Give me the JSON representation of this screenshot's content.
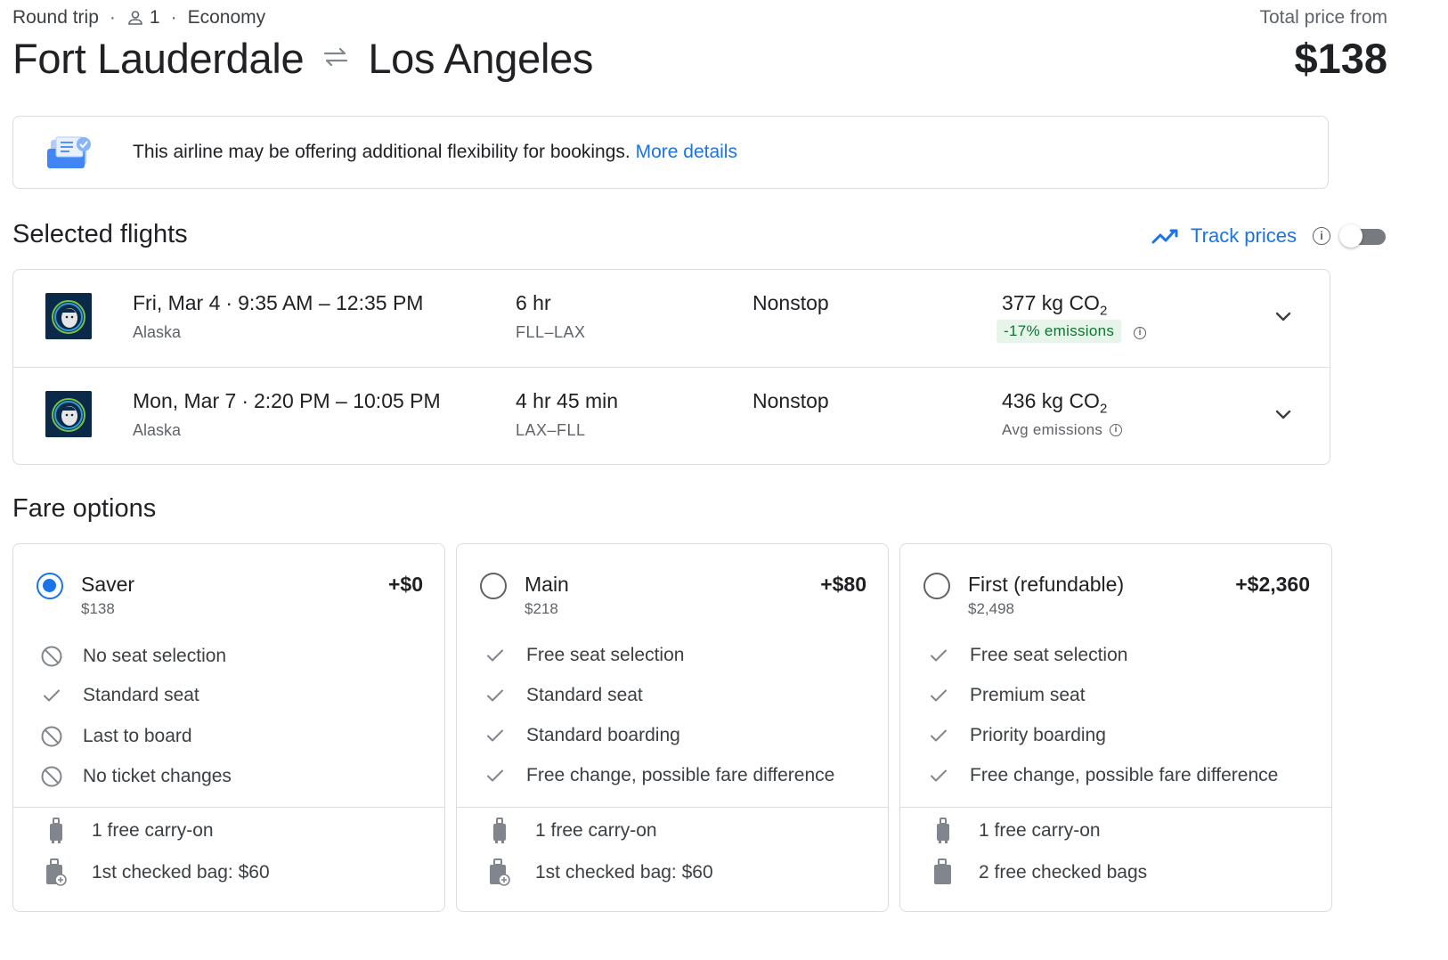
{
  "header": {
    "trip_type": "Round trip",
    "passengers": "1",
    "cabin": "Economy",
    "origin": "Fort Lauderdale",
    "destination": "Los Angeles",
    "price_label": "Total price from",
    "price": "$138"
  },
  "notice": {
    "text": "This airline may be offering additional flexibility for bookings.",
    "link": "More details"
  },
  "selected": {
    "title": "Selected flights",
    "track_label": "Track prices"
  },
  "flights": [
    {
      "date": "Fri, Mar 4",
      "times": "9:35 AM – 12:35 PM",
      "airline": "Alaska",
      "duration": "6 hr",
      "route": "FLL–LAX",
      "stops": "Nonstop",
      "co2": "377 kg CO",
      "co2_sub": "2",
      "emissions": "-17% emissions"
    },
    {
      "date": "Mon, Mar 7",
      "times": "2:20 PM – 10:05 PM",
      "airline": "Alaska",
      "duration": "4 hr 45 min",
      "route": "LAX–FLL",
      "stops": "Nonstop",
      "co2": "436 kg CO",
      "co2_sub": "2",
      "emissions": "Avg emissions"
    }
  ],
  "fares": {
    "title": "Fare options",
    "options": [
      {
        "name": "Saver",
        "base": "$138",
        "delta": "+$0",
        "selected": true,
        "features": [
          "No seat selection",
          "Standard seat",
          "Last to board",
          "No ticket changes"
        ],
        "bags": [
          "1 free carry-on",
          "1st checked bag: $60"
        ]
      },
      {
        "name": "Main",
        "base": "$218",
        "delta": "+$80",
        "selected": false,
        "features": [
          "Free seat selection",
          "Standard seat",
          "Standard boarding",
          "Free change, possible fare difference"
        ],
        "bags": [
          "1 free carry-on",
          "1st checked bag: $60"
        ]
      },
      {
        "name": "First (refundable)",
        "base": "$2,498",
        "delta": "+$2,360",
        "selected": false,
        "features": [
          "Free seat selection",
          "Premium seat",
          "Priority boarding",
          "Free change, possible fare difference"
        ],
        "bags": [
          "1 free carry-on",
          "2 free checked bags"
        ]
      }
    ]
  },
  "colors": {
    "accent": "#1a73e8",
    "green_bg": "#e6f4ea",
    "green_text": "#137333",
    "border": "#dadce0"
  }
}
